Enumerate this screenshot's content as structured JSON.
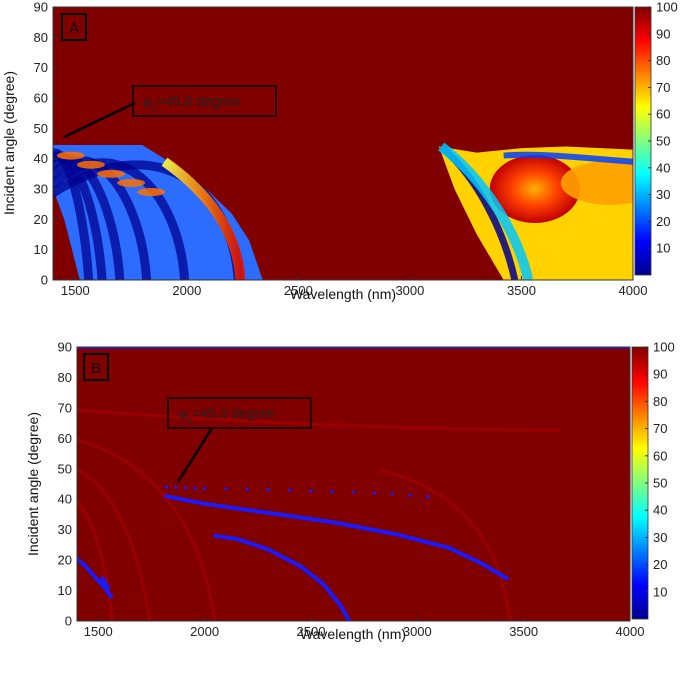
{
  "colors": {
    "background": "#800000",
    "min": "#00008f",
    "max": "#800000",
    "trace": "#1a1aff"
  },
  "chart_data": [
    {
      "type": "heatmap",
      "panel_label": "A",
      "xlabel": "Wavelength (nm)",
      "ylabel": "Incident angle (degree)",
      "xlim": [
        1400,
        4000
      ],
      "ylim": [
        0,
        90
      ],
      "x_ticks": [
        1500,
        2000,
        2500,
        3000,
        3500,
        4000
      ],
      "y_ticks": [
        0,
        10,
        20,
        30,
        40,
        50,
        60,
        70,
        80,
        90
      ],
      "colorbar": {
        "min": 0,
        "max": 100,
        "ticks": [
          10,
          20,
          30,
          40,
          50,
          60,
          70,
          80,
          90,
          100
        ]
      },
      "background_value": 100,
      "annotation": {
        "symbol": "φ",
        "subscript": "c",
        "text": "=45.6 degree",
        "points_to": [
          1420,
          46
        ]
      },
      "regions": [
        {
          "name": "short-wavelength band",
          "boundary": [
            [
              1400,
              44.5
            ],
            [
              1800,
              44.5
            ],
            [
              1900,
              40
            ],
            [
              2000,
              35
            ],
            [
              2100,
              29
            ],
            [
              2200,
              22
            ],
            [
              2280,
              13
            ],
            [
              2340,
              0
            ],
            [
              1520,
              0
            ],
            [
              1450,
              20
            ],
            [
              1400,
              30
            ]
          ],
          "typical_value": 30,
          "fringe_minima_x_at_0deg": [
            1560,
            1620,
            1700,
            1820,
            1990,
            2230
          ]
        },
        {
          "name": "long-wavelength band",
          "boundary": [
            [
              3130,
              44
            ],
            [
              3300,
              42
            ],
            [
              3500,
              43.5
            ],
            [
              3700,
              44
            ],
            [
              4000,
              43
            ],
            [
              4000,
              0
            ],
            [
              3420,
              0
            ],
            [
              3300,
              15
            ],
            [
              3200,
              30
            ]
          ],
          "typical_value": 40,
          "fringe_minima_x_at_0deg": [
            3470,
            3530
          ]
        }
      ]
    },
    {
      "type": "heatmap",
      "panel_label": "B",
      "xlabel": "Wavelength (nm)",
      "ylabel": "Incident angle (degree)",
      "xlim": [
        1400,
        4000
      ],
      "ylim": [
        0,
        90
      ],
      "x_ticks": [
        1500,
        2000,
        2500,
        3000,
        3500,
        4000
      ],
      "y_ticks": [
        0,
        10,
        20,
        30,
        40,
        50,
        60,
        70,
        80,
        90
      ],
      "colorbar": {
        "min": 0,
        "max": 100,
        "ticks": [
          10,
          20,
          30,
          40,
          50,
          60,
          70,
          80,
          90,
          100
        ]
      },
      "background_value": 100,
      "annotation": {
        "symbol": "φ",
        "subscript": "c",
        "text": "=45.3 degree",
        "points_to": [
          1840,
          44
        ]
      },
      "low_value_lines": [
        {
          "name": "top edge",
          "points": [
            [
              1400,
              90
            ],
            [
              4000,
              90
            ]
          ]
        },
        {
          "name": "main branch",
          "points": [
            [
              1820,
              41
            ],
            [
              2000,
              38.5
            ],
            [
              2300,
              35.5
            ],
            [
              2600,
              32.5
            ],
            [
              2900,
              28.5
            ],
            [
              3150,
              24
            ],
            [
              3300,
              19
            ],
            [
              3420,
              14
            ]
          ]
        },
        {
          "name": "middle branch",
          "points": [
            [
              2050,
              28
            ],
            [
              2150,
              27
            ],
            [
              2300,
              23.5
            ],
            [
              2450,
              18
            ],
            [
              2560,
              12
            ],
            [
              2640,
              5
            ],
            [
              2680,
              0
            ]
          ]
        },
        {
          "name": "short branch",
          "points": [
            [
              1400,
              20.5
            ],
            [
              1440,
              18
            ],
            [
              1490,
              14
            ],
            [
              1530,
              11
            ],
            [
              1560,
              8
            ]
          ]
        },
        {
          "name": "short segment",
          "points": [
            [
              1520,
              14
            ],
            [
              1545,
              11
            ]
          ]
        },
        {
          "name": "dotted critical line",
          "points": [
            [
              1820,
              44
            ],
            [
              2000,
              43.5
            ],
            [
              2400,
              43
            ],
            [
              2800,
              42
            ],
            [
              3130,
              40.5
            ]
          ]
        }
      ]
    }
  ]
}
